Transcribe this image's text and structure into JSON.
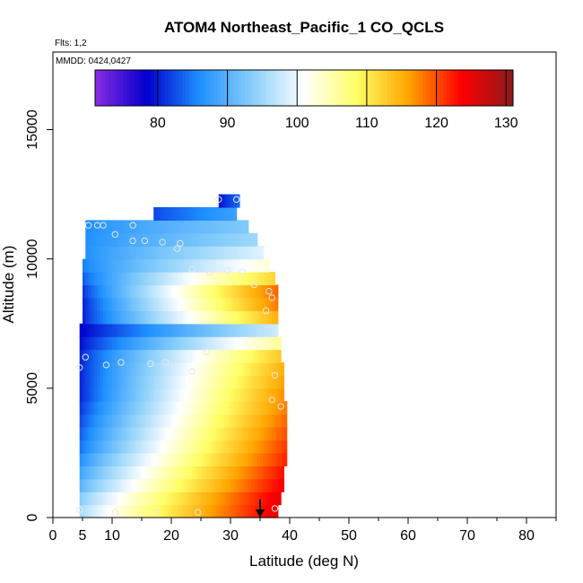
{
  "chart_data": {
    "type": "heatmap",
    "title": "ATOM4 Northeast_Pacific_1 CO_QCLS",
    "flights_label": "Flts: 1,2",
    "dates_label": "MMDD: 0424,0427",
    "xlabel": "Latitude (deg N)",
    "ylabel": "Altitude (m)",
    "xlim": [
      0,
      85
    ],
    "ylim": [
      0,
      18000
    ],
    "x_ticks": [
      0,
      10,
      20,
      30,
      40,
      50,
      60,
      70,
      80
    ],
    "x_tick_labels": [
      "0",
      "5",
      "10",
      "20",
      "30",
      "40",
      "50",
      "60",
      "70",
      "80"
    ],
    "x_tick_label_values": [
      0,
      5,
      10,
      20,
      30,
      40,
      50,
      60,
      70,
      80
    ],
    "x_minor_ticks": [
      5,
      15,
      25,
      35,
      45,
      55,
      65,
      75,
      85
    ],
    "y_ticks": [
      0,
      5000,
      10000,
      15000
    ],
    "y_tick_labels": [
      "0",
      "5000",
      "10000",
      "15000"
    ],
    "colorbar": {
      "range": [
        71,
        131
      ],
      "ticks": [
        80,
        90,
        100,
        110,
        120,
        130
      ],
      "tick_labels": [
        "80",
        "90",
        "100",
        "110",
        "120",
        "130"
      ],
      "colors": [
        "#8a2be2",
        "#0000cd",
        "#1e90ff",
        "#87cefa",
        "#ffffff",
        "#ffff66",
        "#ffa500",
        "#ff0000",
        "#8b1a1a"
      ]
    },
    "marker": {
      "type": "arrow-down",
      "x": 35,
      "y_top": 700,
      "y_bottom": 0
    },
    "curtain": {
      "rows": [
        {
          "y0": 0,
          "y1": 500,
          "x0": 4.5,
          "x1": 38,
          "lo": 95,
          "hi": 125
        },
        {
          "y0": 500,
          "y1": 1000,
          "x0": 4.5,
          "x1": 38.5,
          "lo": 93,
          "hi": 125
        },
        {
          "y0": 1000,
          "y1": 1500,
          "x0": 4.5,
          "x1": 39,
          "lo": 90,
          "hi": 124
        },
        {
          "y0": 1500,
          "y1": 2000,
          "x0": 4.5,
          "x1": 39,
          "lo": 88,
          "hi": 123
        },
        {
          "y0": 2000,
          "y1": 2500,
          "x0": 4.5,
          "x1": 39.5,
          "lo": 86,
          "hi": 122
        },
        {
          "y0": 2500,
          "y1": 3000,
          "x0": 4.5,
          "x1": 39.5,
          "lo": 84,
          "hi": 121
        },
        {
          "y0": 3000,
          "y1": 3500,
          "x0": 4.5,
          "x1": 39.5,
          "lo": 83,
          "hi": 120
        },
        {
          "y0": 3500,
          "y1": 4000,
          "x0": 4.5,
          "x1": 39.5,
          "lo": 82,
          "hi": 119
        },
        {
          "y0": 4000,
          "y1": 4500,
          "x0": 4.5,
          "x1": 39.5,
          "lo": 81,
          "hi": 118
        },
        {
          "y0": 4500,
          "y1": 5000,
          "x0": 4.5,
          "x1": 39,
          "lo": 80,
          "hi": 117
        },
        {
          "y0": 5000,
          "y1": 5500,
          "x0": 4.5,
          "x1": 39,
          "lo": 80,
          "hi": 116
        },
        {
          "y0": 5500,
          "y1": 6000,
          "x0": 4.5,
          "x1": 39,
          "lo": 80,
          "hi": 115
        },
        {
          "y0": 6000,
          "y1": 6500,
          "x0": 4.5,
          "x1": 38.5,
          "lo": 80,
          "hi": 113
        },
        {
          "y0": 6500,
          "y1": 7000,
          "x0": 4.5,
          "x1": 38.5,
          "lo": 79,
          "hi": 106
        },
        {
          "y0": 7000,
          "y1": 7500,
          "x0": 4.5,
          "x1": 38,
          "lo": 78,
          "hi": 98
        },
        {
          "y0": 7500,
          "y1": 8000,
          "x0": 5,
          "x1": 38,
          "lo": 80,
          "hi": 115
        },
        {
          "y0": 8000,
          "y1": 8500,
          "x0": 5,
          "x1": 38,
          "lo": 80,
          "hi": 118
        },
        {
          "y0": 8500,
          "y1": 9000,
          "x0": 5,
          "x1": 38,
          "lo": 81,
          "hi": 119
        },
        {
          "y0": 9000,
          "y1": 9500,
          "x0": 5,
          "x1": 37.5,
          "lo": 83,
          "hi": 112
        },
        {
          "y0": 9500,
          "y1": 10000,
          "x0": 5,
          "x1": 36.5,
          "lo": 85,
          "hi": 103
        },
        {
          "y0": 10000,
          "y1": 10500,
          "x0": 5.5,
          "x1": 35.5,
          "lo": 86,
          "hi": 99
        },
        {
          "y0": 10500,
          "y1": 11000,
          "x0": 5.5,
          "x1": 34.5,
          "lo": 86,
          "hi": 95
        },
        {
          "y0": 11000,
          "y1": 11500,
          "x0": 5.5,
          "x1": 33,
          "lo": 86,
          "hi": 93
        },
        {
          "y0": 11500,
          "y1": 12000,
          "x0": 17,
          "x1": 31,
          "lo": 82,
          "hi": 88
        },
        {
          "y0": 12000,
          "y1": 12500,
          "x0": 28,
          "x1": 31.5,
          "lo": 79,
          "hi": 84
        }
      ]
    },
    "points": [
      [
        4.5,
        300
      ],
      [
        10.5,
        200
      ],
      [
        17.5,
        200
      ],
      [
        24.5,
        200
      ],
      [
        37.5,
        350
      ],
      [
        4.5,
        5800
      ],
      [
        5.5,
        6200
      ],
      [
        9,
        5900
      ],
      [
        11.5,
        6000
      ],
      [
        16.5,
        5950
      ],
      [
        19,
        6000
      ],
      [
        23.5,
        5650
      ],
      [
        26,
        6400
      ],
      [
        37.5,
        5500
      ],
      [
        38.5,
        4300
      ],
      [
        37,
        4550
      ],
      [
        36,
        8000
      ],
      [
        37,
        8500
      ],
      [
        36.5,
        8750
      ],
      [
        34,
        9000
      ],
      [
        32,
        9500
      ],
      [
        29.5,
        9550
      ],
      [
        26.5,
        9500
      ],
      [
        23.5,
        9600
      ],
      [
        21,
        10400
      ],
      [
        21.5,
        10600
      ],
      [
        18.5,
        10650
      ],
      [
        15.5,
        10700
      ],
      [
        13.5,
        10700
      ],
      [
        10.5,
        10950
      ],
      [
        13.5,
        11300
      ],
      [
        6,
        11300
      ],
      [
        7.5,
        11300
      ],
      [
        8.5,
        11300
      ],
      [
        28,
        12300
      ],
      [
        31,
        12300
      ]
    ]
  }
}
